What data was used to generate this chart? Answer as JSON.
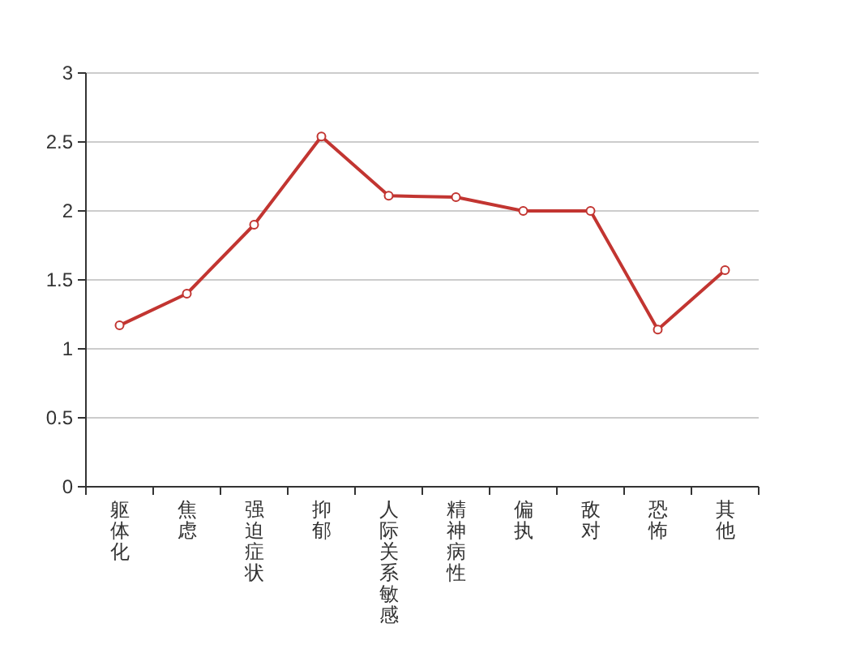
{
  "chart_data": {
    "type": "line",
    "categories": [
      "躯体化",
      "焦虑",
      "强迫症状",
      "抑郁",
      "人际关系敏感",
      "精神病性",
      "偏执",
      "敌对",
      "恐怖",
      "其他"
    ],
    "series": [
      {
        "color": "#c23531",
        "values": [
          1.17,
          1.4,
          1.9,
          2.54,
          2.11,
          2.1,
          2.0,
          2.0,
          1.14,
          1.57
        ]
      }
    ],
    "ylim": [
      0,
      3
    ],
    "yticks": [
      0,
      0.5,
      1,
      1.5,
      2,
      2.5,
      3
    ],
    "grid": "y",
    "marker": "circle",
    "line_style": "solid"
  }
}
